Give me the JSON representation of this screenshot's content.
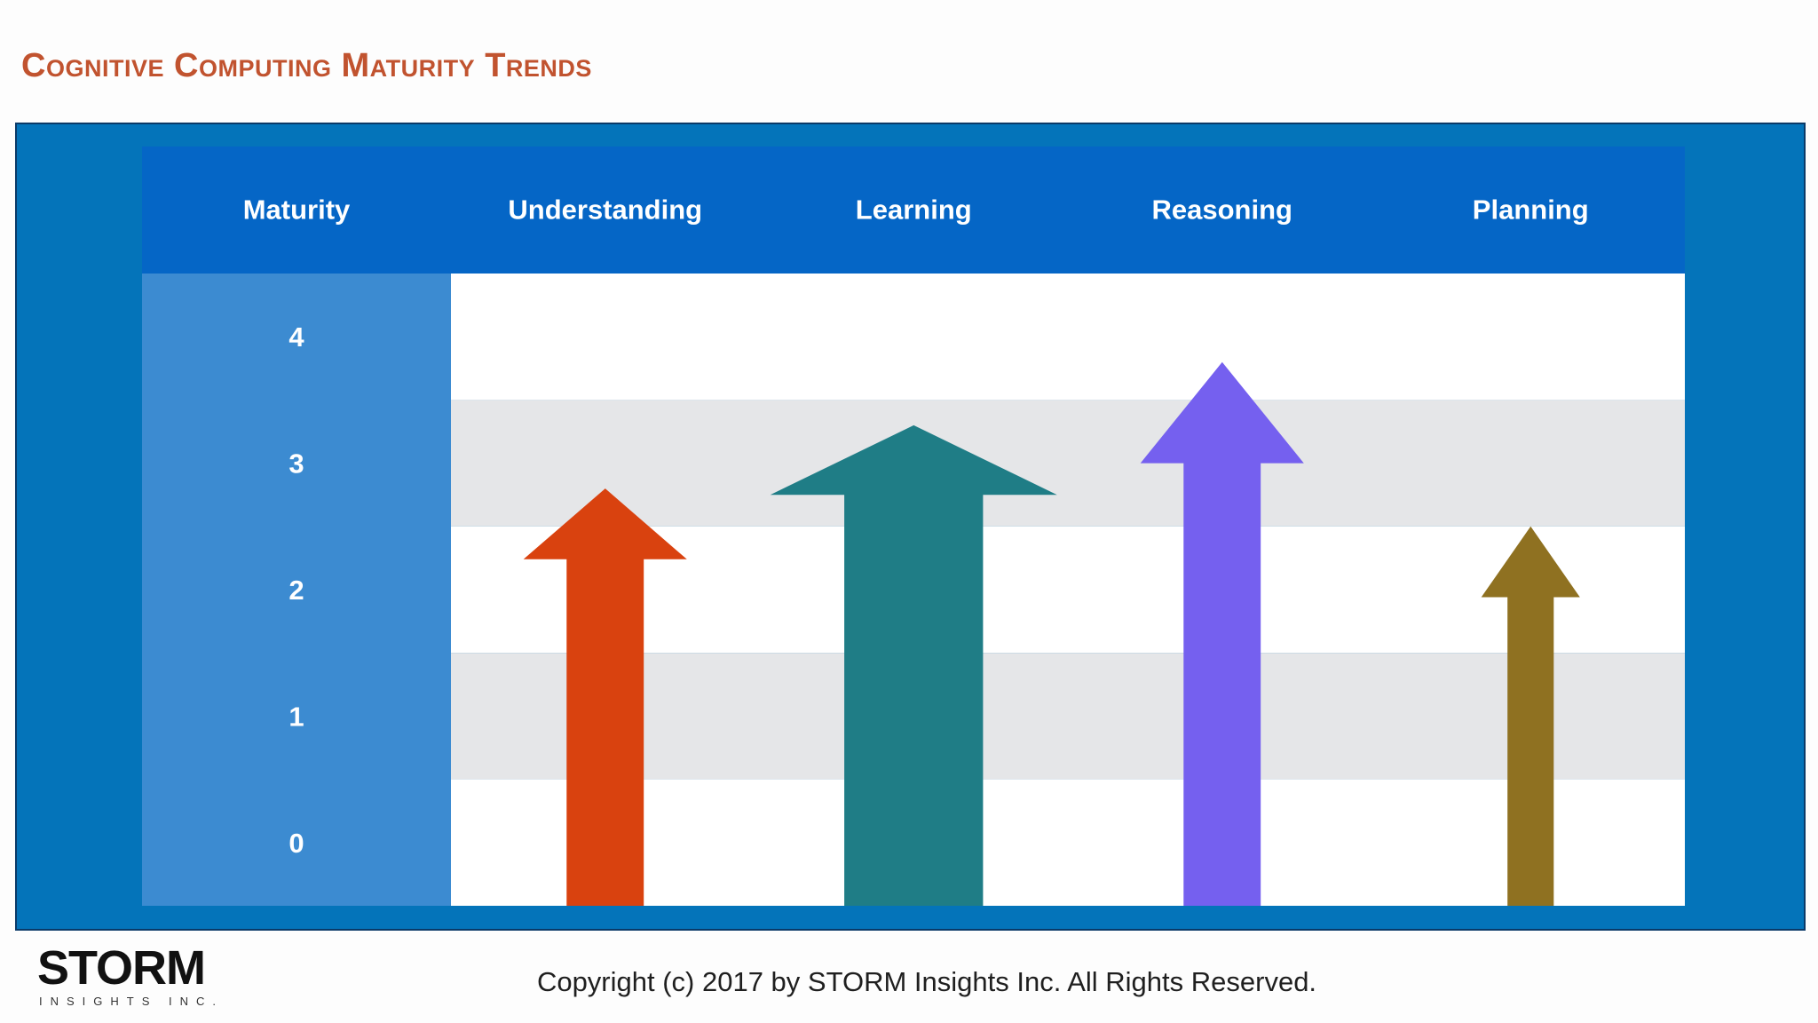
{
  "title": "Cognitive Computing Maturity Trends",
  "colors": {
    "title": "#c1532f",
    "frame": "#0474ba",
    "header_row": "#0566c6",
    "maturity_column": "#3c8bd1",
    "band_light": "#ffffff",
    "band_grey": "#e5e6e8"
  },
  "chart_data": {
    "type": "bar",
    "style": "arrows",
    "row_header": "Maturity",
    "categories": [
      "Understanding",
      "Learning",
      "Reasoning",
      "Planning"
    ],
    "values": [
      2.8,
      3.3,
      3.8,
      2.5
    ],
    "colors": [
      "#d9420f",
      "#1f7d86",
      "#7560ef",
      "#8f7121"
    ],
    "yticks": [
      4,
      3,
      2,
      1,
      0
    ],
    "ylim": [
      -0.5,
      4.5
    ],
    "grid": "alternating horizontal bands"
  },
  "footer": {
    "copyright": "Copyright (c) 2017 by STORM Insights Inc. All Rights Reserved."
  },
  "logo": {
    "word": "STORM",
    "tagline": "INSIGHTS INC."
  }
}
